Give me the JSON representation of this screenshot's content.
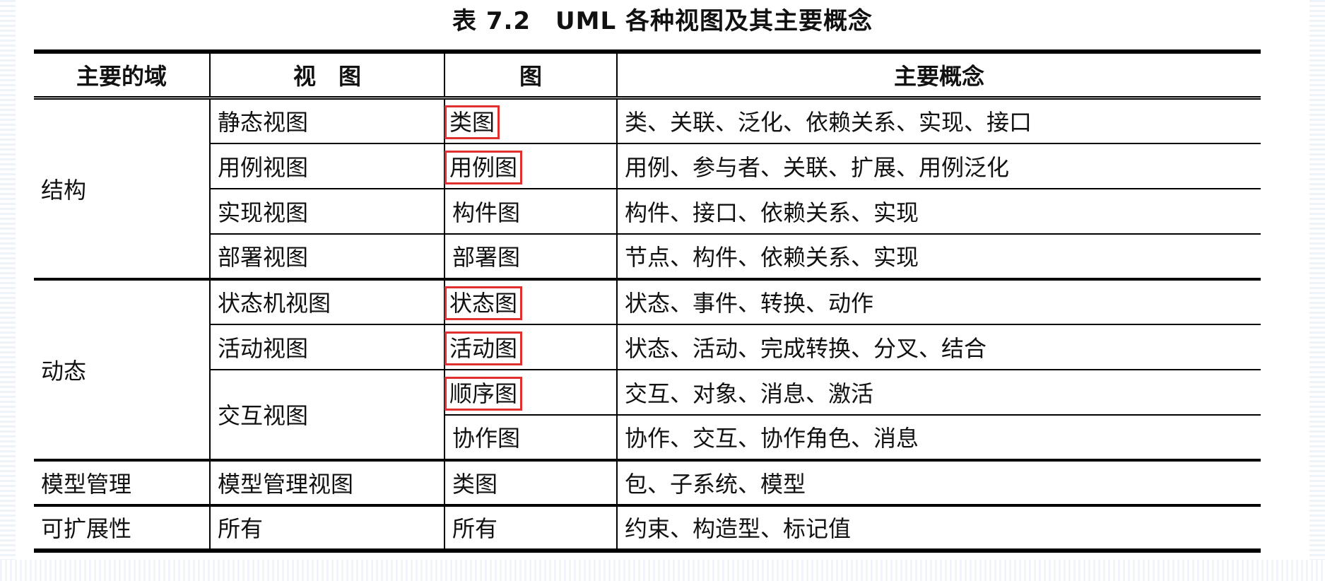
{
  "title": "表 7.2　UML 各种视图及其主要概念",
  "headers": [
    "主要的域",
    "视　图",
    "图",
    "主要概念"
  ],
  "highlight_color": "#e03030",
  "rows": [
    {
      "domain": "结构",
      "view": "静态视图",
      "diagram": "类图",
      "concepts": "类、关联、泛化、依赖关系、实现、接口",
      "highlighted": true
    },
    {
      "view": "用例视图",
      "diagram": "用例图",
      "concepts": "用例、参与者、关联、扩展、用例泛化",
      "highlighted": true
    },
    {
      "view": "实现视图",
      "diagram": "构件图",
      "concepts": "构件、接口、依赖关系、实现",
      "highlighted": false
    },
    {
      "view": "部署视图",
      "diagram": "部署图",
      "concepts": "节点、构件、依赖关系、实现",
      "highlighted": false
    },
    {
      "domain": "动态",
      "view": "状态机视图",
      "diagram": "状态图",
      "concepts": "状态、事件、转换、动作",
      "highlighted": true
    },
    {
      "view": "活动视图",
      "diagram": "活动图",
      "concepts": "状态、活动、完成转换、分叉、结合",
      "highlighted": true
    },
    {
      "view": "交互视图",
      "diagram": "顺序图",
      "concepts": "交互、对象、消息、激活",
      "highlighted": true
    },
    {
      "diagram": "协作图",
      "concepts": "协作、交互、协作角色、消息",
      "highlighted": false
    },
    {
      "domain": "模型管理",
      "view": "模型管理视图",
      "diagram": "类图",
      "concepts": "包、子系统、模型",
      "highlighted": false
    },
    {
      "domain": "可扩展性",
      "view": "所有",
      "diagram": "所有",
      "concepts": "约束、构造型、标记值",
      "highlighted": false
    }
  ]
}
